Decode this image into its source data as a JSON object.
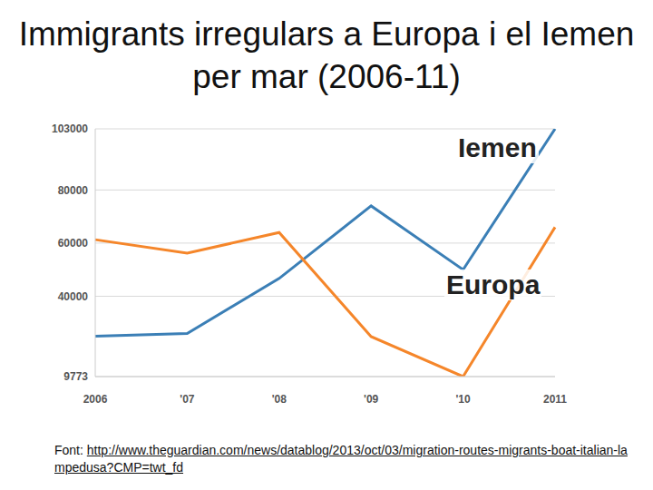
{
  "chart_data": {
    "type": "line",
    "title": "Immigrants irregulars a Europa i el Iemen per mar (2006-11)",
    "categories": [
      "2006",
      "'07",
      "'08",
      "'09",
      "'10",
      "2011"
    ],
    "series": [
      {
        "name": "Iemen",
        "color": "#3b7fb6",
        "values": [
          25000,
          26000,
          46700,
          74000,
          50000,
          103000
        ]
      },
      {
        "name": "Europa",
        "color": "#f5862a",
        "values": [
          61300,
          56200,
          64000,
          24800,
          9773,
          66000
        ]
      }
    ],
    "ylim": [
      9773,
      103000
    ],
    "yticks": [
      9773,
      40000,
      60000,
      80000,
      103000
    ],
    "grid": true,
    "source_label": "Font:",
    "source_url": "http://www.theguardian.com/news/datablog/2013/oct/03/migration-routes-migrants-boat-italian-lampedusa?CMP=twt_fd"
  }
}
